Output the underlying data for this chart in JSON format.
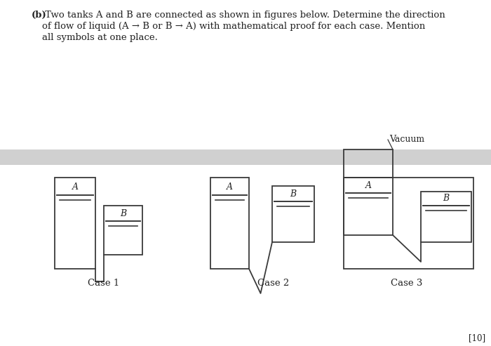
{
  "bg_color": "#ffffff",
  "text_color": "#222222",
  "line_color": "#3a3a3a",
  "title_bold": "(b)",
  "title_rest": " Two tanks A and B are connected as shown in figures below. Determine the direction\n    of flow of liquid (A → B or B → A) with mathematical proof for each case. Mention\n    all symbols at one place.",
  "separator_color": "#d0d0d0",
  "case_labels": [
    "Case 1",
    "Case 2",
    "Case 3"
  ],
  "vacuum_label": "Vacuum",
  "bottom_right_text": "[10]"
}
